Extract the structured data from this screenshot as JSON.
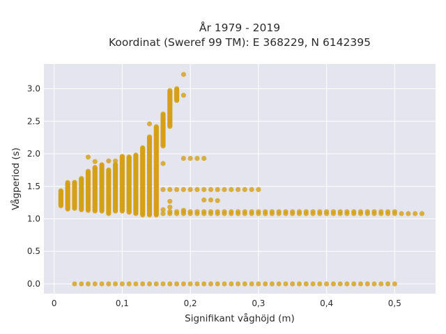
{
  "chart_data": {
    "type": "scatter",
    "title_line1": "År 1979 - 2019",
    "title_line2": "Koordinat (Sweref 99 TM): E 368229, N 6142395",
    "xlabel": "Signifikant våghöjd (m)",
    "ylabel": "Vågperiod (s)",
    "xlim": [
      -0.015,
      0.56
    ],
    "ylim": [
      -0.15,
      3.38
    ],
    "x_ticks": [
      {
        "value": 0,
        "label": "0"
      },
      {
        "value": 0.1,
        "label": "0,1"
      },
      {
        "value": 0.2,
        "label": "0,2"
      },
      {
        "value": 0.3,
        "label": "0,3"
      },
      {
        "value": 0.4,
        "label": "0,4"
      },
      {
        "value": 0.5,
        "label": "0,5"
      }
    ],
    "y_ticks": [
      {
        "value": 0,
        "label": "0.0"
      },
      {
        "value": 0.5,
        "label": "0.5"
      },
      {
        "value": 1,
        "label": "1.0"
      },
      {
        "value": 1.5,
        "label": "1.5"
      },
      {
        "value": 2,
        "label": "2.0"
      },
      {
        "value": 2.5,
        "label": "2.5"
      },
      {
        "value": 3,
        "label": "3.0"
      }
    ],
    "grid": true,
    "marker_color": "#d4a017",
    "background_color": "#e5e5f0",
    "vertical_bands": [
      {
        "x": 0.01,
        "ymin": 1.2,
        "ymax": 1.43
      },
      {
        "x": 0.02,
        "ymin": 1.15,
        "ymax": 1.56
      },
      {
        "x": 0.03,
        "ymin": 1.16,
        "ymax": 1.56
      },
      {
        "x": 0.04,
        "ymin": 1.14,
        "ymax": 1.62
      },
      {
        "x": 0.05,
        "ymin": 1.13,
        "ymax": 1.73
      },
      {
        "x": 0.06,
        "ymin": 1.12,
        "ymax": 1.8
      },
      {
        "x": 0.07,
        "ymin": 1.12,
        "ymax": 1.83
      },
      {
        "x": 0.08,
        "ymin": 1.08,
        "ymax": 1.76
      },
      {
        "x": 0.09,
        "ymin": 1.12,
        "ymax": 1.84
      },
      {
        "x": 0.1,
        "ymin": 1.12,
        "ymax": 1.97
      },
      {
        "x": 0.11,
        "ymin": 1.1,
        "ymax": 1.96
      },
      {
        "x": 0.12,
        "ymin": 1.08,
        "ymax": 1.98
      },
      {
        "x": 0.13,
        "ymin": 1.06,
        "ymax": 2.1
      },
      {
        "x": 0.14,
        "ymin": 1.06,
        "ymax": 2.26
      },
      {
        "x": 0.15,
        "ymin": 1.06,
        "ymax": 2.42
      },
      {
        "x": 0.16,
        "ymin": 2.12,
        "ymax": 2.62
      },
      {
        "x": 0.17,
        "ymin": 2.42,
        "ymax": 2.98
      },
      {
        "x": 0.18,
        "ymin": 2.82,
        "ymax": 3.0
      }
    ],
    "rows": [
      {
        "y": 1.45,
        "xmin": 0.16,
        "xmax": 0.3
      },
      {
        "y": 1.08,
        "xmin": 0.16,
        "xmax": 0.54
      },
      {
        "y": 1.11,
        "xmin": 0.17,
        "xmax": 0.5
      },
      {
        "y": 0.0,
        "xmin": 0.03,
        "xmax": 0.5
      }
    ],
    "points": [
      {
        "x": 0.01,
        "y": 1.33
      },
      {
        "x": 0.01,
        "y": 1.43
      },
      {
        "x": 0.03,
        "y": 1.56
      },
      {
        "x": 0.05,
        "y": 1.95
      },
      {
        "x": 0.06,
        "y": 1.88
      },
      {
        "x": 0.07,
        "y": 1.83
      },
      {
        "x": 0.08,
        "y": 1.89
      },
      {
        "x": 0.09,
        "y": 1.89
      },
      {
        "x": 0.1,
        "y": 1.95
      },
      {
        "x": 0.11,
        "y": 1.93
      },
      {
        "x": 0.12,
        "y": 1.91
      },
      {
        "x": 0.14,
        "y": 2.46
      },
      {
        "x": 0.14,
        "y": 2.16
      },
      {
        "x": 0.15,
        "y": 1.94
      },
      {
        "x": 0.16,
        "y": 1.85
      },
      {
        "x": 0.15,
        "y": 1.2
      },
      {
        "x": 0.17,
        "y": 1.18
      },
      {
        "x": 0.17,
        "y": 1.27
      },
      {
        "x": 0.18,
        "y": 2.97
      },
      {
        "x": 0.19,
        "y": 3.22
      },
      {
        "x": 0.19,
        "y": 2.9
      },
      {
        "x": 0.19,
        "y": 1.93
      },
      {
        "x": 0.2,
        "y": 1.93
      },
      {
        "x": 0.21,
        "y": 1.93
      },
      {
        "x": 0.22,
        "y": 1.93
      },
      {
        "x": 0.22,
        "y": 1.29
      },
      {
        "x": 0.23,
        "y": 1.29
      },
      {
        "x": 0.24,
        "y": 1.28
      },
      {
        "x": 0.19,
        "y": 1.13
      },
      {
        "x": 0.16,
        "y": 1.14
      }
    ]
  }
}
